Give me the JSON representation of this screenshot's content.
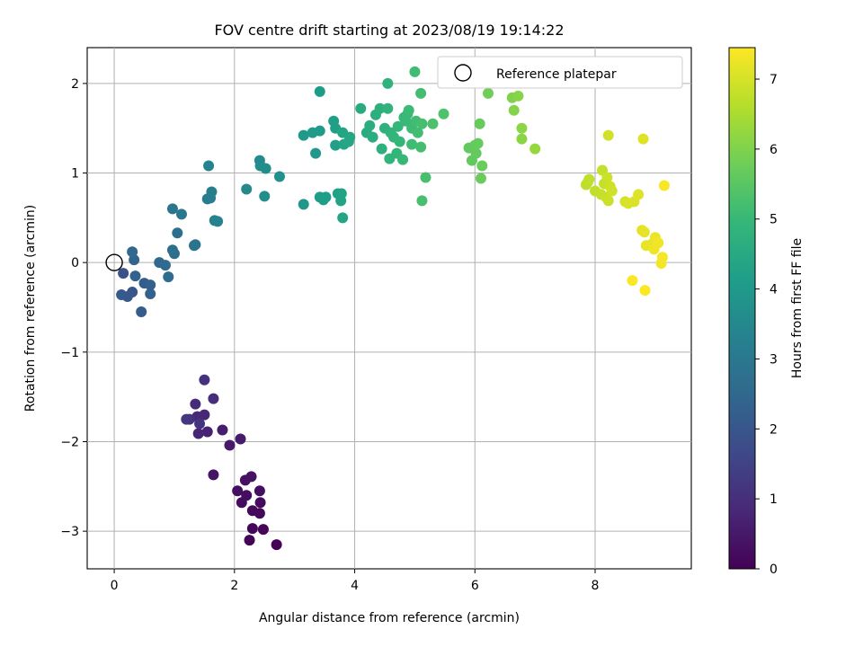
{
  "chart_data": {
    "type": "scatter",
    "title": "FOV centre drift starting at 2023/08/19 19:14:22",
    "xlabel": "Angular distance from reference (arcmin)",
    "ylabel": "Rotation from reference (arcmin)",
    "xlim": [
      -0.45,
      9.6
    ],
    "ylim": [
      -3.42,
      2.4
    ],
    "xticks": [
      0,
      2,
      4,
      6,
      8
    ],
    "yticks": [
      -3,
      -2,
      -1,
      0,
      1,
      2
    ],
    "xtick_labels": [
      "0",
      "2",
      "4",
      "6",
      "8"
    ],
    "ytick_labels": [
      "−3",
      "−2",
      "−1",
      "0",
      "1",
      "2"
    ],
    "grid": true,
    "legend": {
      "placement": "top-right",
      "entries": [
        {
          "label": "Reference platepar",
          "marker": "open-circle"
        }
      ]
    },
    "reference_point": {
      "x": 0,
      "y": 0
    },
    "colorbar": {
      "label": "Hours from first FF file",
      "colormap": "viridis",
      "range": [
        0,
        7.45
      ],
      "ticks": [
        0,
        1,
        2,
        3,
        4,
        5,
        6,
        7
      ],
      "tick_labels": [
        "0",
        "1",
        "2",
        "3",
        "4",
        "5",
        "6",
        "7"
      ]
    },
    "viridis_stops": [
      "#440154",
      "#482878",
      "#3e4989",
      "#31688e",
      "#26828e",
      "#1f9e89",
      "#35b779",
      "#6ece58",
      "#b5de2b",
      "#fde725"
    ],
    "points": [
      {
        "x": 2.7,
        "y": -3.15,
        "t": 0.05
      },
      {
        "x": 2.25,
        "y": -3.1,
        "t": 0.08
      },
      {
        "x": 2.48,
        "y": -2.98,
        "t": 0.1
      },
      {
        "x": 2.3,
        "y": -2.97,
        "t": 0.12
      },
      {
        "x": 2.42,
        "y": -2.8,
        "t": 0.15
      },
      {
        "x": 2.3,
        "y": -2.77,
        "t": 0.18
      },
      {
        "x": 2.43,
        "y": -2.68,
        "t": 0.2
      },
      {
        "x": 2.12,
        "y": -2.68,
        "t": 0.22
      },
      {
        "x": 2.2,
        "y": -2.6,
        "t": 0.25
      },
      {
        "x": 2.05,
        "y": -2.55,
        "t": 0.28
      },
      {
        "x": 2.42,
        "y": -2.55,
        "t": 0.3
      },
      {
        "x": 2.18,
        "y": -2.43,
        "t": 0.33
      },
      {
        "x": 2.28,
        "y": -2.39,
        "t": 0.36
      },
      {
        "x": 1.65,
        "y": -2.37,
        "t": 0.4
      },
      {
        "x": 1.92,
        "y": -2.04,
        "t": 0.5
      },
      {
        "x": 2.1,
        "y": -1.97,
        "t": 0.55
      },
      {
        "x": 1.8,
        "y": -1.87,
        "t": 0.6
      },
      {
        "x": 1.55,
        "y": -1.89,
        "t": 0.7
      },
      {
        "x": 1.4,
        "y": -1.91,
        "t": 0.75
      },
      {
        "x": 1.5,
        "y": -1.7,
        "t": 0.8
      },
      {
        "x": 1.38,
        "y": -1.72,
        "t": 0.85
      },
      {
        "x": 1.35,
        "y": -1.58,
        "t": 0.9
      },
      {
        "x": 1.65,
        "y": -1.52,
        "t": 0.95
      },
      {
        "x": 1.25,
        "y": -1.75,
        "t": 1.0
      },
      {
        "x": 1.5,
        "y": -1.31,
        "t": 1.05
      },
      {
        "x": 1.42,
        "y": -1.8,
        "t": 1.1
      },
      {
        "x": 1.2,
        "y": -1.75,
        "t": 1.2
      },
      {
        "x": 0.15,
        "y": -0.12,
        "t": 1.9
      },
      {
        "x": 0.3,
        "y": -0.33,
        "t": 2.0
      },
      {
        "x": 0.22,
        "y": -0.38,
        "t": 2.05
      },
      {
        "x": 0.12,
        "y": -0.36,
        "t": 2.1
      },
      {
        "x": 0.45,
        "y": -0.55,
        "t": 2.15
      },
      {
        "x": 0.5,
        "y": -0.23,
        "t": 2.2
      },
      {
        "x": 0.6,
        "y": -0.25,
        "t": 2.25
      },
      {
        "x": 0.6,
        "y": -0.35,
        "t": 2.3
      },
      {
        "x": 0.35,
        "y": -0.15,
        "t": 2.35
      },
      {
        "x": 0.33,
        "y": 0.03,
        "t": 2.4
      },
      {
        "x": 0.3,
        "y": 0.12,
        "t": 2.45
      },
      {
        "x": 0.75,
        "y": 0.0,
        "t": 2.5
      },
      {
        "x": 0.85,
        "y": -0.03,
        "t": 2.55
      },
      {
        "x": 0.9,
        "y": -0.16,
        "t": 2.6
      },
      {
        "x": 1.0,
        "y": 0.1,
        "t": 2.65
      },
      {
        "x": 0.97,
        "y": 0.14,
        "t": 2.7
      },
      {
        "x": 1.05,
        "y": 0.33,
        "t": 2.75
      },
      {
        "x": 1.35,
        "y": 0.2,
        "t": 2.8
      },
      {
        "x": 1.33,
        "y": 0.19,
        "t": 2.85
      },
      {
        "x": 0.97,
        "y": 0.6,
        "t": 2.9
      },
      {
        "x": 1.12,
        "y": 0.54,
        "t": 2.95
      },
      {
        "x": 1.55,
        "y": 0.71,
        "t": 3.1
      },
      {
        "x": 1.6,
        "y": 0.72,
        "t": 3.15
      },
      {
        "x": 1.62,
        "y": 0.79,
        "t": 3.2
      },
      {
        "x": 1.67,
        "y": 0.47,
        "t": 3.25
      },
      {
        "x": 1.72,
        "y": 0.46,
        "t": 3.3
      },
      {
        "x": 1.57,
        "y": 1.08,
        "t": 3.35
      },
      {
        "x": 2.2,
        "y": 0.82,
        "t": 3.5
      },
      {
        "x": 2.42,
        "y": 1.14,
        "t": 3.55
      },
      {
        "x": 2.43,
        "y": 1.08,
        "t": 3.6
      },
      {
        "x": 2.52,
        "y": 1.05,
        "t": 3.65
      },
      {
        "x": 2.5,
        "y": 0.74,
        "t": 3.7
      },
      {
        "x": 2.75,
        "y": 0.96,
        "t": 3.75
      },
      {
        "x": 3.15,
        "y": 0.65,
        "t": 3.9
      },
      {
        "x": 3.35,
        "y": 1.22,
        "t": 3.95
      },
      {
        "x": 3.15,
        "y": 1.42,
        "t": 4.0
      },
      {
        "x": 3.3,
        "y": 1.45,
        "t": 4.02
      },
      {
        "x": 3.42,
        "y": 1.47,
        "t": 4.05
      },
      {
        "x": 3.42,
        "y": 1.91,
        "t": 4.08
      },
      {
        "x": 3.42,
        "y": 0.73,
        "t": 4.1
      },
      {
        "x": 3.48,
        "y": 0.7,
        "t": 4.12
      },
      {
        "x": 3.52,
        "y": 0.73,
        "t": 4.15
      },
      {
        "x": 3.65,
        "y": 1.58,
        "t": 4.18
      },
      {
        "x": 3.68,
        "y": 1.5,
        "t": 4.2
      },
      {
        "x": 3.68,
        "y": 1.31,
        "t": 4.22
      },
      {
        "x": 3.72,
        "y": 0.77,
        "t": 4.25
      },
      {
        "x": 3.77,
        "y": 0.69,
        "t": 4.28
      },
      {
        "x": 3.78,
        "y": 0.77,
        "t": 4.3
      },
      {
        "x": 3.8,
        "y": 0.5,
        "t": 4.32
      },
      {
        "x": 3.8,
        "y": 1.45,
        "t": 4.35
      },
      {
        "x": 3.82,
        "y": 1.32,
        "t": 4.38
      },
      {
        "x": 3.9,
        "y": 1.35,
        "t": 4.4
      },
      {
        "x": 3.92,
        "y": 1.4,
        "t": 4.42
      },
      {
        "x": 4.1,
        "y": 1.72,
        "t": 4.55
      },
      {
        "x": 4.2,
        "y": 1.45,
        "t": 4.6
      },
      {
        "x": 4.25,
        "y": 1.53,
        "t": 4.62
      },
      {
        "x": 4.3,
        "y": 1.4,
        "t": 4.65
      },
      {
        "x": 4.35,
        "y": 1.65,
        "t": 4.68
      },
      {
        "x": 4.42,
        "y": 1.72,
        "t": 4.7
      },
      {
        "x": 4.45,
        "y": 1.27,
        "t": 4.72
      },
      {
        "x": 4.5,
        "y": 1.5,
        "t": 4.75
      },
      {
        "x": 4.55,
        "y": 1.72,
        "t": 4.78
      },
      {
        "x": 4.55,
        "y": 2.0,
        "t": 4.8
      },
      {
        "x": 4.58,
        "y": 1.16,
        "t": 4.82
      },
      {
        "x": 4.6,
        "y": 1.45,
        "t": 4.85
      },
      {
        "x": 4.65,
        "y": 1.4,
        "t": 4.88
      },
      {
        "x": 4.7,
        "y": 1.22,
        "t": 4.9
      },
      {
        "x": 4.72,
        "y": 1.52,
        "t": 4.92
      },
      {
        "x": 4.75,
        "y": 1.35,
        "t": 4.95
      },
      {
        "x": 4.8,
        "y": 1.15,
        "t": 4.98
      },
      {
        "x": 4.82,
        "y": 1.62,
        "t": 5.0
      },
      {
        "x": 4.85,
        "y": 1.58,
        "t": 5.02
      },
      {
        "x": 4.88,
        "y": 1.66,
        "t": 5.04
      },
      {
        "x": 4.9,
        "y": 1.7,
        "t": 5.06
      },
      {
        "x": 4.95,
        "y": 1.5,
        "t": 5.08
      },
      {
        "x": 4.95,
        "y": 1.32,
        "t": 5.1
      },
      {
        "x": 5.0,
        "y": 2.13,
        "t": 5.12
      },
      {
        "x": 5.02,
        "y": 1.58,
        "t": 5.14
      },
      {
        "x": 5.05,
        "y": 1.45,
        "t": 5.16
      },
      {
        "x": 5.1,
        "y": 1.89,
        "t": 5.18
      },
      {
        "x": 5.1,
        "y": 1.29,
        "t": 5.2
      },
      {
        "x": 5.12,
        "y": 1.55,
        "t": 5.22
      },
      {
        "x": 5.12,
        "y": 0.69,
        "t": 5.24
      },
      {
        "x": 5.18,
        "y": 0.95,
        "t": 5.26
      },
      {
        "x": 5.3,
        "y": 1.55,
        "t": 5.3
      },
      {
        "x": 5.48,
        "y": 1.66,
        "t": 5.35
      },
      {
        "x": 5.9,
        "y": 1.28,
        "t": 5.6
      },
      {
        "x": 5.95,
        "y": 1.14,
        "t": 5.62
      },
      {
        "x": 6.0,
        "y": 1.31,
        "t": 5.64
      },
      {
        "x": 6.02,
        "y": 1.22,
        "t": 5.66
      },
      {
        "x": 6.05,
        "y": 1.33,
        "t": 5.68
      },
      {
        "x": 6.08,
        "y": 1.55,
        "t": 5.7
      },
      {
        "x": 6.1,
        "y": 0.94,
        "t": 5.72
      },
      {
        "x": 6.12,
        "y": 1.08,
        "t": 5.74
      },
      {
        "x": 6.22,
        "y": 1.89,
        "t": 5.8
      },
      {
        "x": 6.62,
        "y": 1.84,
        "t": 6.0
      },
      {
        "x": 6.65,
        "y": 1.7,
        "t": 6.05
      },
      {
        "x": 6.72,
        "y": 1.86,
        "t": 6.08
      },
      {
        "x": 6.78,
        "y": 1.38,
        "t": 6.12
      },
      {
        "x": 6.78,
        "y": 1.5,
        "t": 6.15
      },
      {
        "x": 7.0,
        "y": 1.27,
        "t": 6.25
      },
      {
        "x": 7.85,
        "y": 0.87,
        "t": 6.7
      },
      {
        "x": 7.88,
        "y": 0.9,
        "t": 6.72
      },
      {
        "x": 7.9,
        "y": 0.93,
        "t": 6.74
      },
      {
        "x": 8.0,
        "y": 0.8,
        "t": 6.76
      },
      {
        "x": 8.1,
        "y": 0.76,
        "t": 6.78
      },
      {
        "x": 8.12,
        "y": 1.03,
        "t": 6.8
      },
      {
        "x": 8.15,
        "y": 0.88,
        "t": 6.82
      },
      {
        "x": 8.18,
        "y": 0.73,
        "t": 6.84
      },
      {
        "x": 8.2,
        "y": 0.95,
        "t": 6.86
      },
      {
        "x": 8.22,
        "y": 0.69,
        "t": 6.88
      },
      {
        "x": 8.25,
        "y": 0.85,
        "t": 6.9
      },
      {
        "x": 8.28,
        "y": 0.8,
        "t": 6.92
      },
      {
        "x": 8.22,
        "y": 1.42,
        "t": 6.94
      },
      {
        "x": 8.5,
        "y": 0.68,
        "t": 7.0
      },
      {
        "x": 8.55,
        "y": 0.66,
        "t": 7.02
      },
      {
        "x": 8.65,
        "y": 0.68,
        "t": 7.05
      },
      {
        "x": 8.72,
        "y": 0.76,
        "t": 7.08
      },
      {
        "x": 8.8,
        "y": 1.38,
        "t": 7.1
      },
      {
        "x": 8.78,
        "y": 0.36,
        "t": 7.15
      },
      {
        "x": 8.82,
        "y": 0.34,
        "t": 7.18
      },
      {
        "x": 8.85,
        "y": 0.19,
        "t": 7.2
      },
      {
        "x": 8.95,
        "y": 0.21,
        "t": 7.22
      },
      {
        "x": 9.0,
        "y": 0.28,
        "t": 7.25
      },
      {
        "x": 8.98,
        "y": 0.15,
        "t": 7.27
      },
      {
        "x": 9.05,
        "y": 0.22,
        "t": 7.3
      },
      {
        "x": 9.1,
        "y": -0.01,
        "t": 7.33
      },
      {
        "x": 9.12,
        "y": 0.06,
        "t": 7.36
      },
      {
        "x": 9.15,
        "y": 0.86,
        "t": 7.4
      },
      {
        "x": 8.62,
        "y": -0.2,
        "t": 7.42
      },
      {
        "x": 8.83,
        "y": -0.31,
        "t": 7.44
      }
    ]
  }
}
